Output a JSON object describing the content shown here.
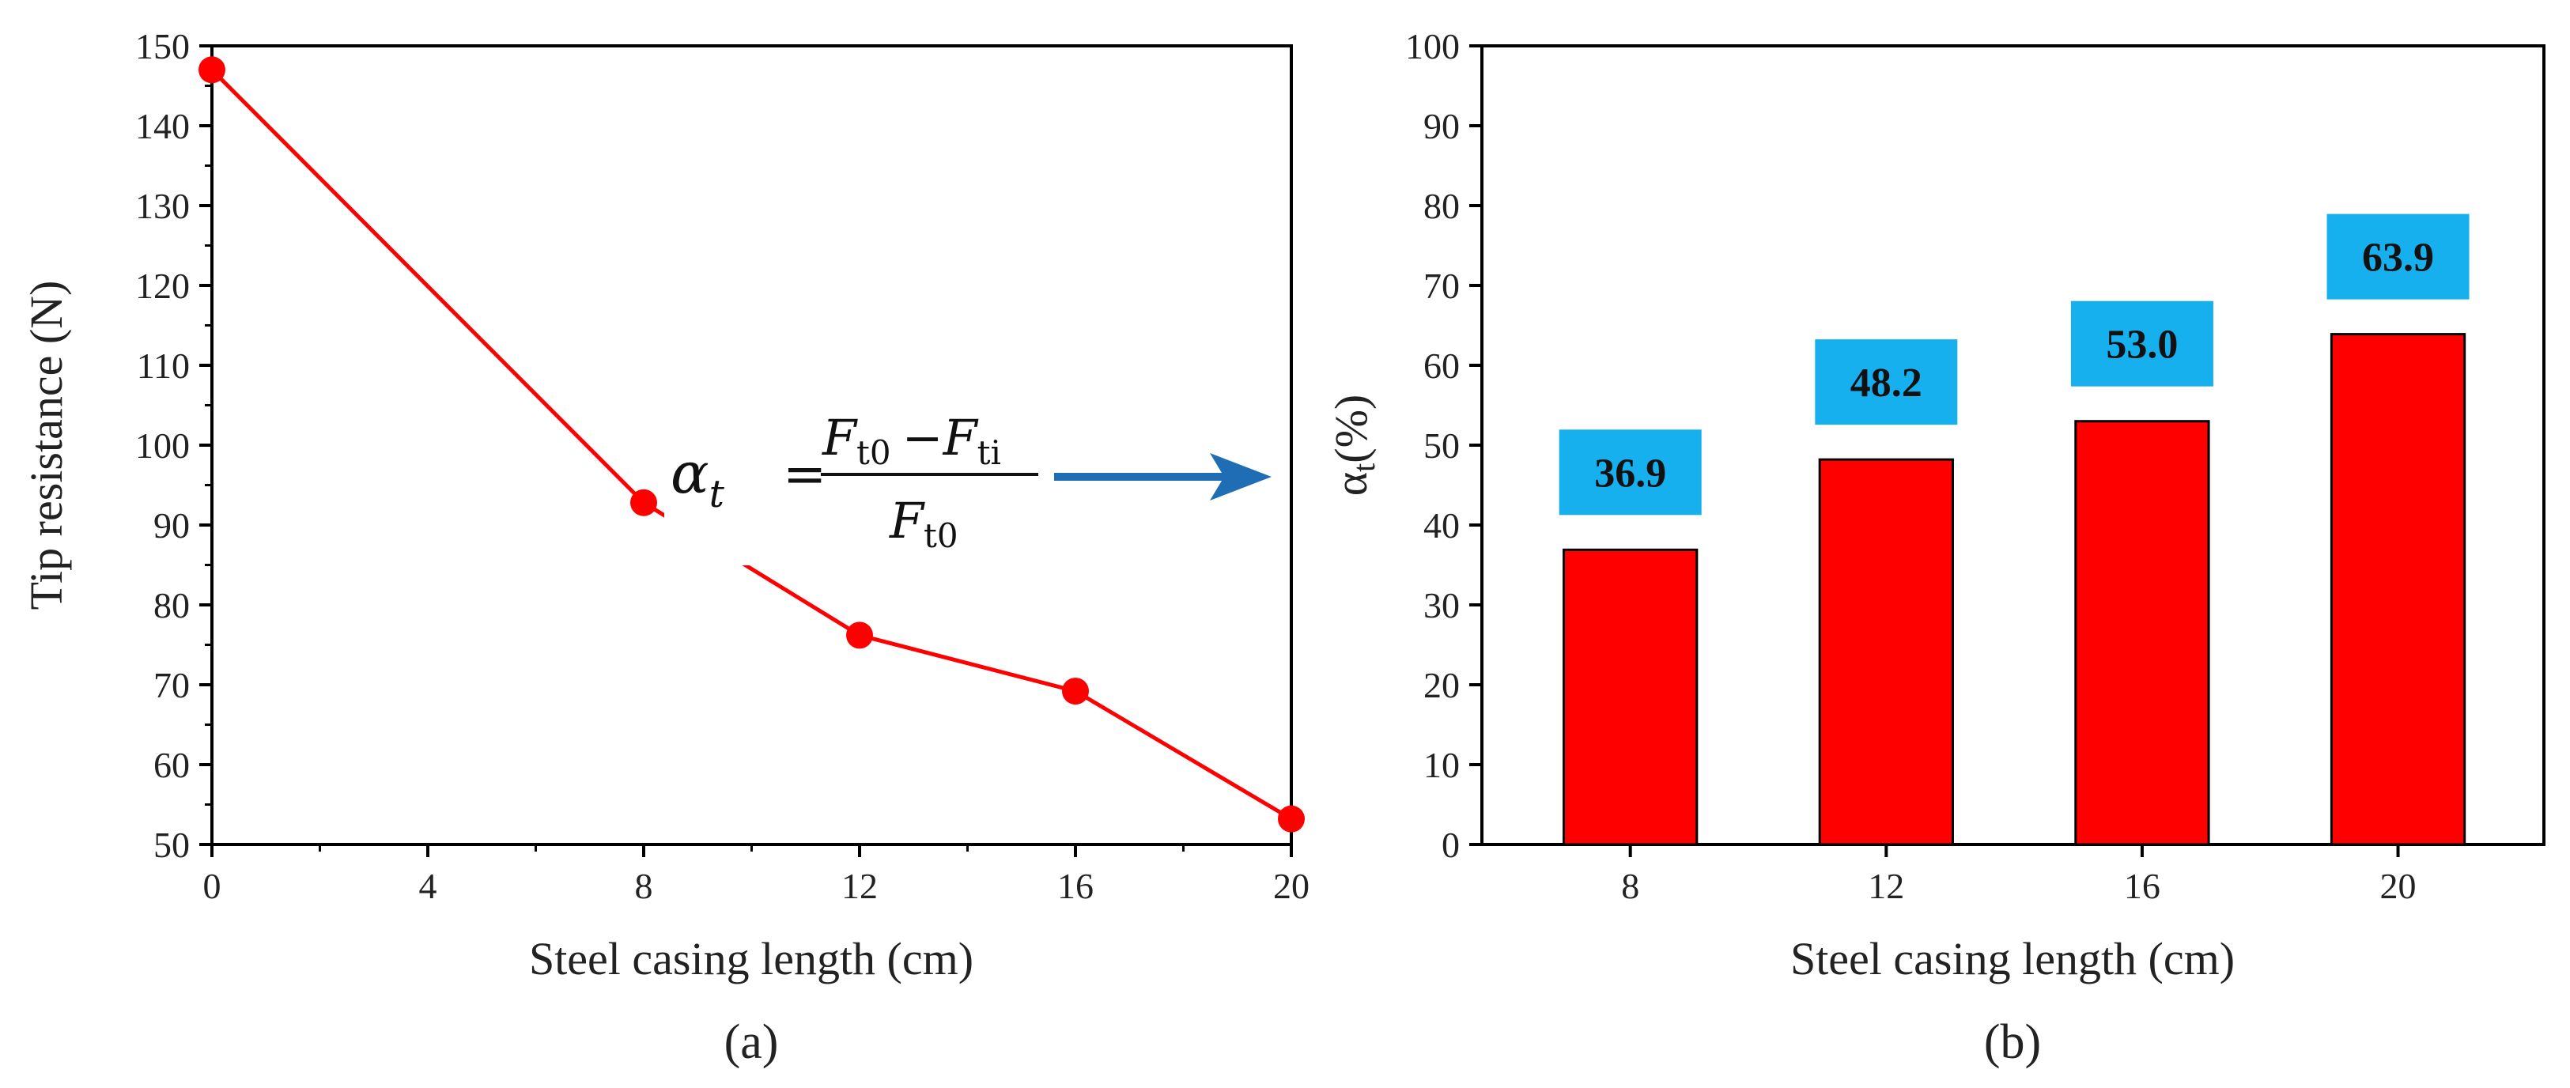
{
  "chart_data": [
    {
      "type": "line",
      "panel": "(a)",
      "xlabel": "Steel casing length (cm)",
      "ylabel": "Tip resistance (N)",
      "xlim": [
        0,
        20
      ],
      "ylim": [
        50,
        150
      ],
      "x_ticks": [
        0,
        4,
        8,
        12,
        16,
        20
      ],
      "y_ticks": [
        50,
        60,
        70,
        80,
        90,
        100,
        110,
        120,
        130,
        140,
        150
      ],
      "color": "#ff0000",
      "series": [
        {
          "name": "Tip resistance",
          "x": [
            0,
            8,
            12,
            16,
            20
          ],
          "y": [
            147,
            92.8,
            76.2,
            69.2,
            53.2
          ]
        }
      ],
      "annotation": {
        "lhs_symbol": "α",
        "lhs_subscript": "t",
        "equals": "=",
        "numerator": "F",
        "numerator_sub": "t0",
        "minus": "−F",
        "minus_sub": "ti",
        "denominator": "F",
        "denominator_sub": "t0"
      }
    },
    {
      "type": "bar",
      "panel": "(b)",
      "xlabel": "Steel casing length (cm)",
      "ylabel_symbol": "α",
      "ylabel_sub": "t",
      "ylabel_unit": "(%)",
      "ylim": [
        0,
        100
      ],
      "y_ticks": [
        0,
        10,
        20,
        30,
        40,
        50,
        60,
        70,
        80,
        90,
        100
      ],
      "categories": [
        "8",
        "12",
        "16",
        "20"
      ],
      "values": [
        36.9,
        48.2,
        53.0,
        63.9
      ],
      "labels": [
        "36.9",
        "48.2",
        "53.0",
        "63.9"
      ],
      "bar_color": "#ff0000",
      "label_box_color": "#17b0ee"
    }
  ],
  "colors": {
    "arrow": "#1f6db5",
    "axis": "#000000"
  }
}
